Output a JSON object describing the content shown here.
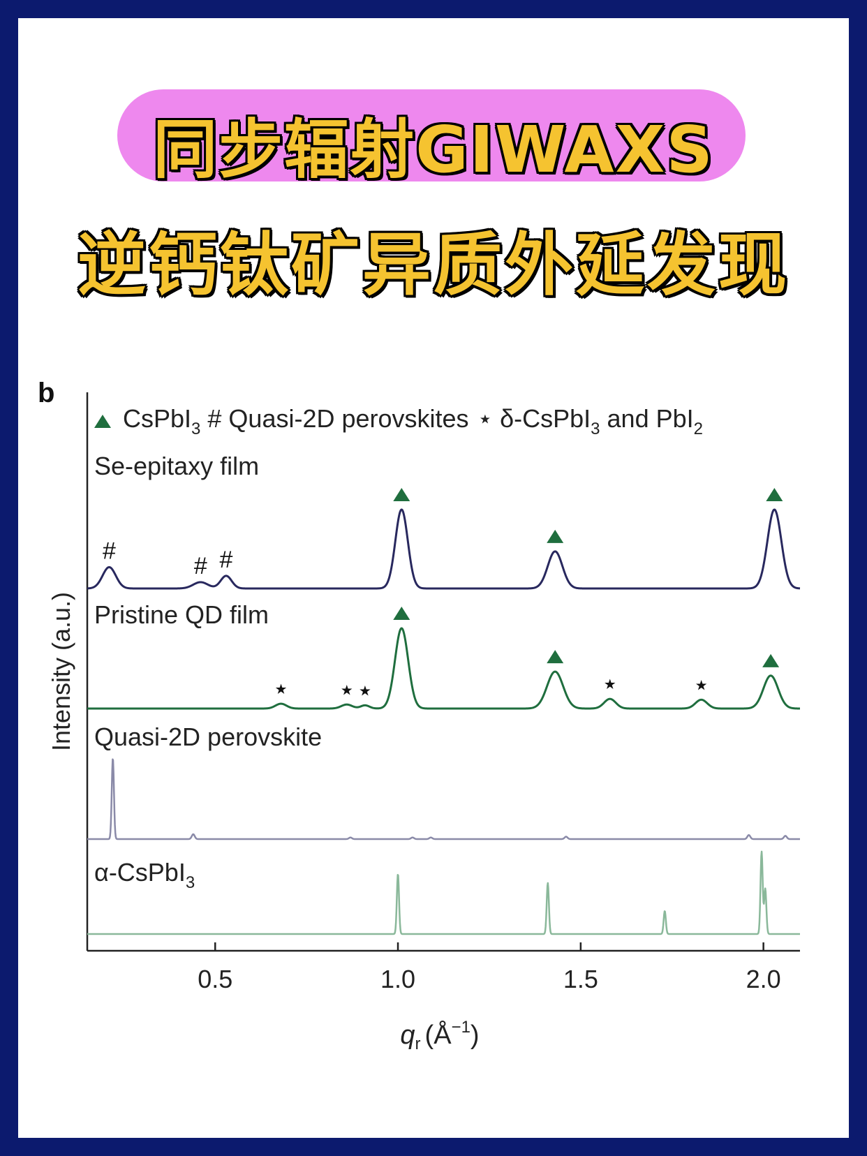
{
  "title_line1": "同步辐射GIWAXS",
  "title_line2": "逆钙钛矿异质外延发现",
  "colors": {
    "frame": "#0c1a6e",
    "title_text": "#f5c330",
    "title_pill": "#ee88ee",
    "se_epitaxy": "#28285e",
    "pristine": "#1f6e3e",
    "quasi2d": "#8a8aa8",
    "alpha": "#8ab89a",
    "marker": "#1f6e3e"
  },
  "chart_data": {
    "type": "line",
    "panel_label": "b",
    "xlabel": "q",
    "xlabel_sub": "r",
    "xlabel_unit": "(Å",
    "xlabel_unit_sup": "−1",
    "xlabel_close": ")",
    "ylabel": "Intensity (a.u.)",
    "xlim": [
      0.15,
      2.1
    ],
    "xticks": [
      "0.5",
      "1.0",
      "1.5",
      "2.0"
    ],
    "legend": {
      "marker_label": "CsPbI",
      "marker_sub": "3",
      "hash_label": "# Quasi-2D perovskites",
      "star_label": "⋆ δ-CsPbI",
      "star_sub": "3",
      "star_tail": " and PbI",
      "star_tail_sub": "2"
    },
    "series": [
      {
        "name": "Se-epitaxy film",
        "peaks": [
          {
            "q": 0.21,
            "h": 0.27,
            "w": 0.018,
            "mark": "#"
          },
          {
            "q": 0.46,
            "h": 0.08,
            "w": 0.02,
            "mark": "#"
          },
          {
            "q": 0.53,
            "h": 0.16,
            "w": 0.015,
            "mark": "#"
          },
          {
            "q": 1.01,
            "h": 1.0,
            "w": 0.017,
            "mark": "▲"
          },
          {
            "q": 1.43,
            "h": 0.47,
            "w": 0.02,
            "mark": "▲"
          },
          {
            "q": 2.03,
            "h": 1.0,
            "w": 0.019,
            "mark": "▲"
          }
        ]
      },
      {
        "name": "Pristine QD film",
        "peaks": [
          {
            "q": 0.68,
            "h": 0.06,
            "w": 0.015,
            "mark": "⋆"
          },
          {
            "q": 0.86,
            "h": 0.05,
            "w": 0.015,
            "mark": "⋆"
          },
          {
            "q": 0.91,
            "h": 0.04,
            "w": 0.012,
            "mark": "⋆"
          },
          {
            "q": 1.01,
            "h": 1.0,
            "w": 0.018,
            "mark": "▲"
          },
          {
            "q": 1.43,
            "h": 0.46,
            "w": 0.022,
            "mark": "▲"
          },
          {
            "q": 1.58,
            "h": 0.12,
            "w": 0.016,
            "mark": "⋆"
          },
          {
            "q": 1.83,
            "h": 0.11,
            "w": 0.016,
            "mark": "⋆"
          },
          {
            "q": 2.02,
            "h": 0.41,
            "w": 0.02,
            "mark": "▲"
          }
        ]
      },
      {
        "name": "Quasi-2D perovskite",
        "peaks": [
          {
            "q": 0.22,
            "h": 1.0,
            "w": 0.003
          },
          {
            "q": 0.44,
            "h": 0.06,
            "w": 0.004
          },
          {
            "q": 0.87,
            "h": 0.02,
            "w": 0.004
          },
          {
            "q": 1.04,
            "h": 0.02,
            "w": 0.004
          },
          {
            "q": 1.09,
            "h": 0.02,
            "w": 0.004
          },
          {
            "q": 1.46,
            "h": 0.03,
            "w": 0.004
          },
          {
            "q": 1.96,
            "h": 0.05,
            "w": 0.004
          },
          {
            "q": 2.06,
            "h": 0.04,
            "w": 0.004
          }
        ]
      },
      {
        "name": "α-CsPbI",
        "name_sub": "3",
        "peaks": [
          {
            "q": 1.0,
            "h": 0.73,
            "w": 0.003
          },
          {
            "q": 1.41,
            "h": 0.62,
            "w": 0.003
          },
          {
            "q": 1.73,
            "h": 0.28,
            "w": 0.003
          },
          {
            "q": 1.995,
            "h": 1.0,
            "w": 0.003
          },
          {
            "q": 2.005,
            "h": 0.55,
            "w": 0.003
          }
        ]
      }
    ]
  }
}
